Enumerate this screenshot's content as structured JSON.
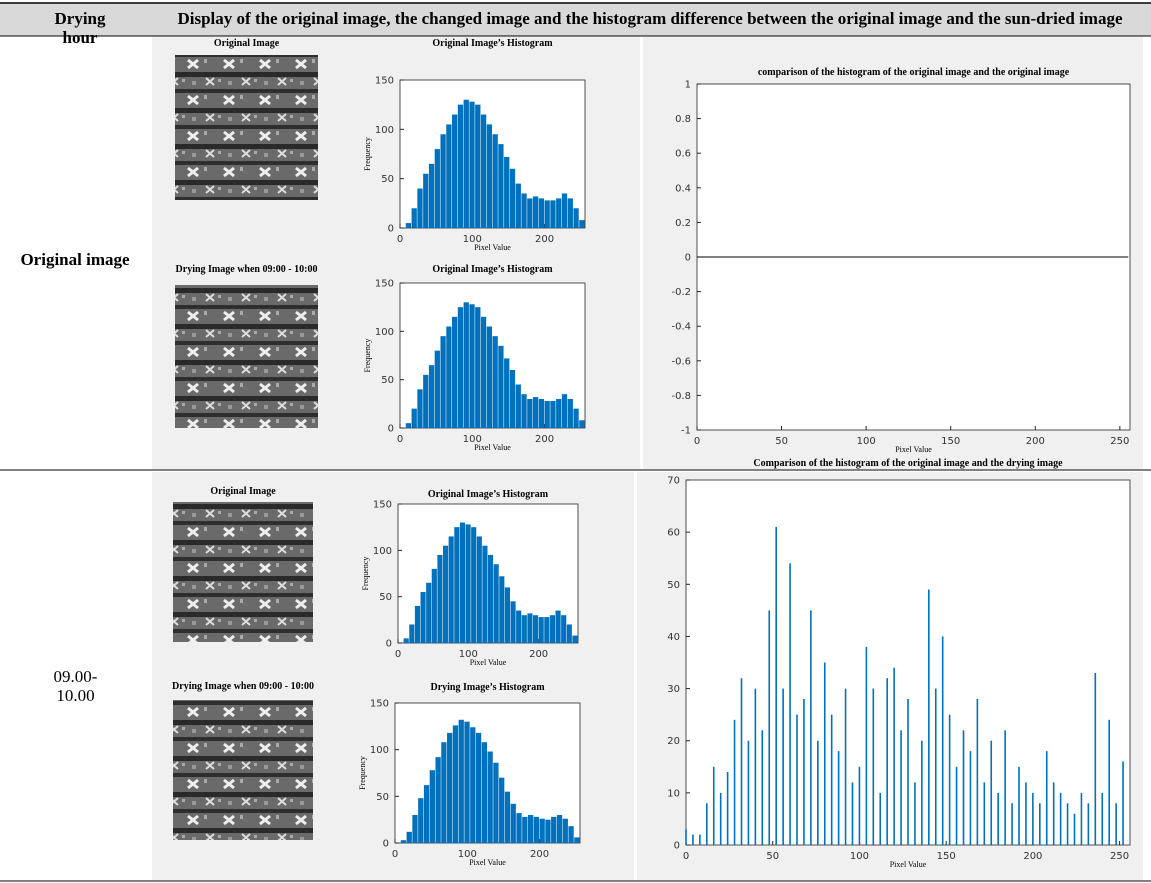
{
  "table": {
    "header": [
      "Drying hour",
      "Display of the original image, the changed image and the histogram difference between the original image and the sun-dried image"
    ],
    "rows": [
      {
        "hour": "Original image",
        "images": [
          {
            "caption": "Original Image"
          },
          {
            "caption": "Drying Image when 09:00 - 10:00"
          }
        ],
        "charts": [
          {
            "type": "histogram",
            "title": "Original Image’s Histogram",
            "xlabel": "Pixel Value",
            "ylabel": "Frequency",
            "color": "#0072bd",
            "bins": [
              0,
              8,
              16,
              24,
              32,
              40,
              48,
              56,
              64,
              72,
              80,
              88,
              96,
              104,
              112,
              120,
              128,
              136,
              144,
              152,
              160,
              168,
              176,
              184,
              192,
              200,
              208,
              216,
              224,
              232,
              240,
              248,
              256
            ],
            "values": [
              0,
              5,
              20,
              40,
              55,
              65,
              80,
              95,
              105,
              115,
              125,
              130,
              128,
              125,
              115,
              105,
              95,
              85,
              72,
              60,
              45,
              35,
              30,
              32,
              30,
              28,
              28,
              30,
              35,
              30,
              20,
              8
            ],
            "xlim": [
              0,
              256
            ],
            "xticks": [
              0,
              100,
              200
            ],
            "ylim": [
              0,
              150
            ],
            "yticks": [
              0,
              50,
              100,
              150
            ]
          },
          {
            "type": "histogram",
            "title": "Original Image’s Histogram",
            "xlabel": "Pixel Value",
            "ylabel": "Frequency",
            "color": "#0072bd",
            "bins": [
              0,
              8,
              16,
              24,
              32,
              40,
              48,
              56,
              64,
              72,
              80,
              88,
              96,
              104,
              112,
              120,
              128,
              136,
              144,
              152,
              160,
              168,
              176,
              184,
              192,
              200,
              208,
              216,
              224,
              232,
              240,
              248,
              256
            ],
            "values": [
              0,
              5,
              20,
              40,
              55,
              65,
              80,
              95,
              105,
              115,
              125,
              130,
              128,
              125,
              115,
              105,
              95,
              85,
              72,
              60,
              45,
              35,
              30,
              32,
              30,
              28,
              28,
              30,
              35,
              30,
              20,
              8
            ],
            "xlim": [
              0,
              256
            ],
            "xticks": [
              0,
              100,
              200
            ],
            "ylim": [
              0,
              150
            ],
            "yticks": [
              0,
              50,
              100,
              150
            ]
          },
          {
            "type": "line",
            "title": "comparison of the histogram of the original image and the original image",
            "xlabel": "Pixel Value",
            "color": "#000000",
            "x": [
              0,
              255
            ],
            "values": [
              0,
              0
            ],
            "xlim": [
              0,
              256
            ],
            "xticks": [
              0,
              50,
              100,
              150,
              200,
              250
            ],
            "ylim": [
              -1,
              1
            ],
            "yticks": [
              -1,
              -0.8,
              -0.6,
              -0.4,
              -0.2,
              0,
              0.2,
              0.4,
              0.6,
              0.8,
              1
            ]
          }
        ]
      },
      {
        "hour": "09.00-10.00",
        "images": [
          {
            "caption": "Original Image"
          },
          {
            "caption": "Drying Image when 09:00 - 10:00"
          }
        ],
        "charts": [
          {
            "type": "histogram",
            "title": "Original Image’s Histogram",
            "xlabel": "Pixel Value",
            "ylabel": "Frequency",
            "color": "#0072bd",
            "bins": [
              0,
              8,
              16,
              24,
              32,
              40,
              48,
              56,
              64,
              72,
              80,
              88,
              96,
              104,
              112,
              120,
              128,
              136,
              144,
              152,
              160,
              168,
              176,
              184,
              192,
              200,
              208,
              216,
              224,
              232,
              240,
              248,
              256
            ],
            "values": [
              0,
              5,
              20,
              40,
              55,
              65,
              80,
              95,
              105,
              115,
              125,
              130,
              128,
              125,
              115,
              105,
              95,
              85,
              72,
              60,
              45,
              35,
              30,
              32,
              30,
              28,
              28,
              30,
              35,
              30,
              20,
              8
            ],
            "xlim": [
              0,
              256
            ],
            "xticks": [
              0,
              100,
              200
            ],
            "ylim": [
              0,
              150
            ],
            "yticks": [
              0,
              50,
              100,
              150
            ]
          },
          {
            "type": "histogram",
            "title": "Drying Image’s Histogram",
            "xlabel": "Pixel Value",
            "ylabel": "Frequency",
            "color": "#0072bd",
            "bins": [
              0,
              8,
              16,
              24,
              32,
              40,
              48,
              56,
              64,
              72,
              80,
              88,
              96,
              104,
              112,
              120,
              128,
              136,
              144,
              152,
              160,
              168,
              176,
              184,
              192,
              200,
              208,
              216,
              224,
              232,
              240,
              248,
              256
            ],
            "values": [
              0,
              3,
              12,
              30,
              48,
              62,
              78,
              92,
              108,
              118,
              126,
              132,
              130,
              124,
              118,
              108,
              98,
              86,
              70,
              55,
              42,
              32,
              28,
              30,
              28,
              26,
              25,
              28,
              30,
              26,
              18,
              6
            ],
            "xlim": [
              0,
              256
            ],
            "xticks": [
              0,
              100,
              200
            ],
            "ylim": [
              0,
              150
            ],
            "yticks": [
              0,
              50,
              100,
              150
            ]
          },
          {
            "type": "bar",
            "title": "Comparison of the histogram of the original image and the drying image",
            "xlabel": "Pixel Value",
            "color": "#0072bd",
            "x": [
              0,
              4,
              8,
              12,
              16,
              20,
              24,
              28,
              32,
              36,
              40,
              44,
              48,
              52,
              56,
              60,
              64,
              68,
              72,
              76,
              80,
              84,
              88,
              92,
              96,
              100,
              104,
              108,
              112,
              116,
              120,
              124,
              128,
              132,
              136,
              140,
              144,
              148,
              152,
              156,
              160,
              164,
              168,
              172,
              176,
              180,
              184,
              188,
              192,
              196,
              200,
              204,
              208,
              212,
              216,
              220,
              224,
              228,
              232,
              236,
              240,
              244,
              248,
              252
            ],
            "values": [
              3,
              2,
              2,
              8,
              15,
              10,
              14,
              24,
              32,
              20,
              30,
              22,
              45,
              61,
              30,
              54,
              25,
              28,
              45,
              20,
              35,
              25,
              18,
              30,
              12,
              15,
              38,
              30,
              10,
              32,
              34,
              22,
              28,
              12,
              20,
              49,
              30,
              40,
              25,
              15,
              22,
              18,
              28,
              12,
              20,
              10,
              22,
              8,
              15,
              12,
              10,
              8,
              18,
              12,
              10,
              8,
              6,
              10,
              8,
              33,
              10,
              24,
              8,
              16
            ],
            "xlim": [
              0,
              256
            ],
            "xticks": [
              0,
              50,
              100,
              150,
              200,
              250
            ],
            "ylim": [
              0,
              70
            ],
            "yticks": [
              0,
              10,
              20,
              30,
              40,
              50,
              60,
              70
            ]
          }
        ]
      }
    ]
  }
}
